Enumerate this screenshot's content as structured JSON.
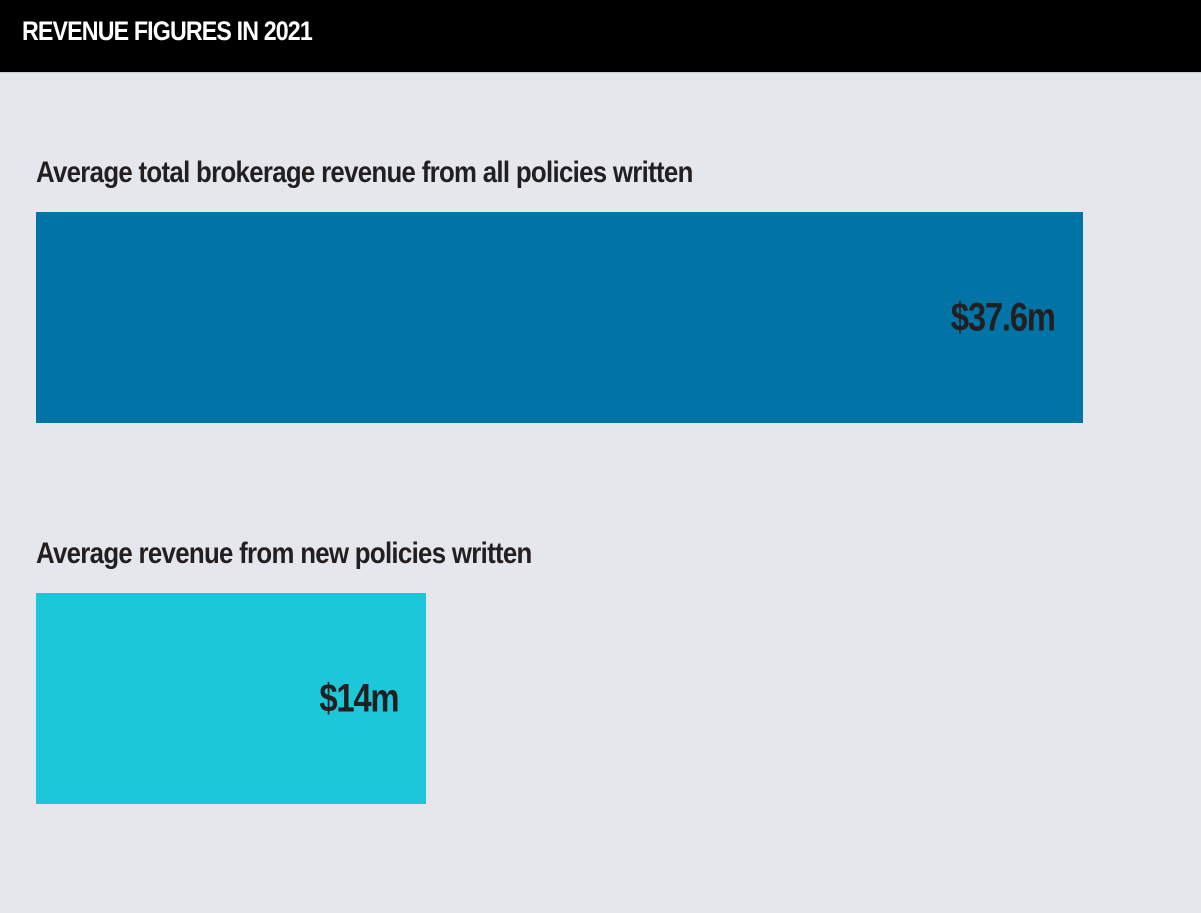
{
  "header": {
    "title": "REVENUE FIGURES IN 2021"
  },
  "colors": {
    "background": "#e6e7ec",
    "header_bg": "#000000",
    "bar_1": "#0073a7",
    "bar_2": "#1dc7da",
    "text": "#231f20"
  },
  "chart_data": {
    "type": "bar",
    "orientation": "horizontal",
    "title": "REVENUE FIGURES IN 2021",
    "unit": "$m",
    "categories": [
      "Average total brokerage revenue from all policies written",
      "Average revenue from new policies written"
    ],
    "values": [
      37.6,
      14
    ],
    "data_labels": [
      "$37.6m",
      "$14m"
    ],
    "xlim": [
      0,
      37.6
    ],
    "grid": false,
    "legend": "none"
  }
}
